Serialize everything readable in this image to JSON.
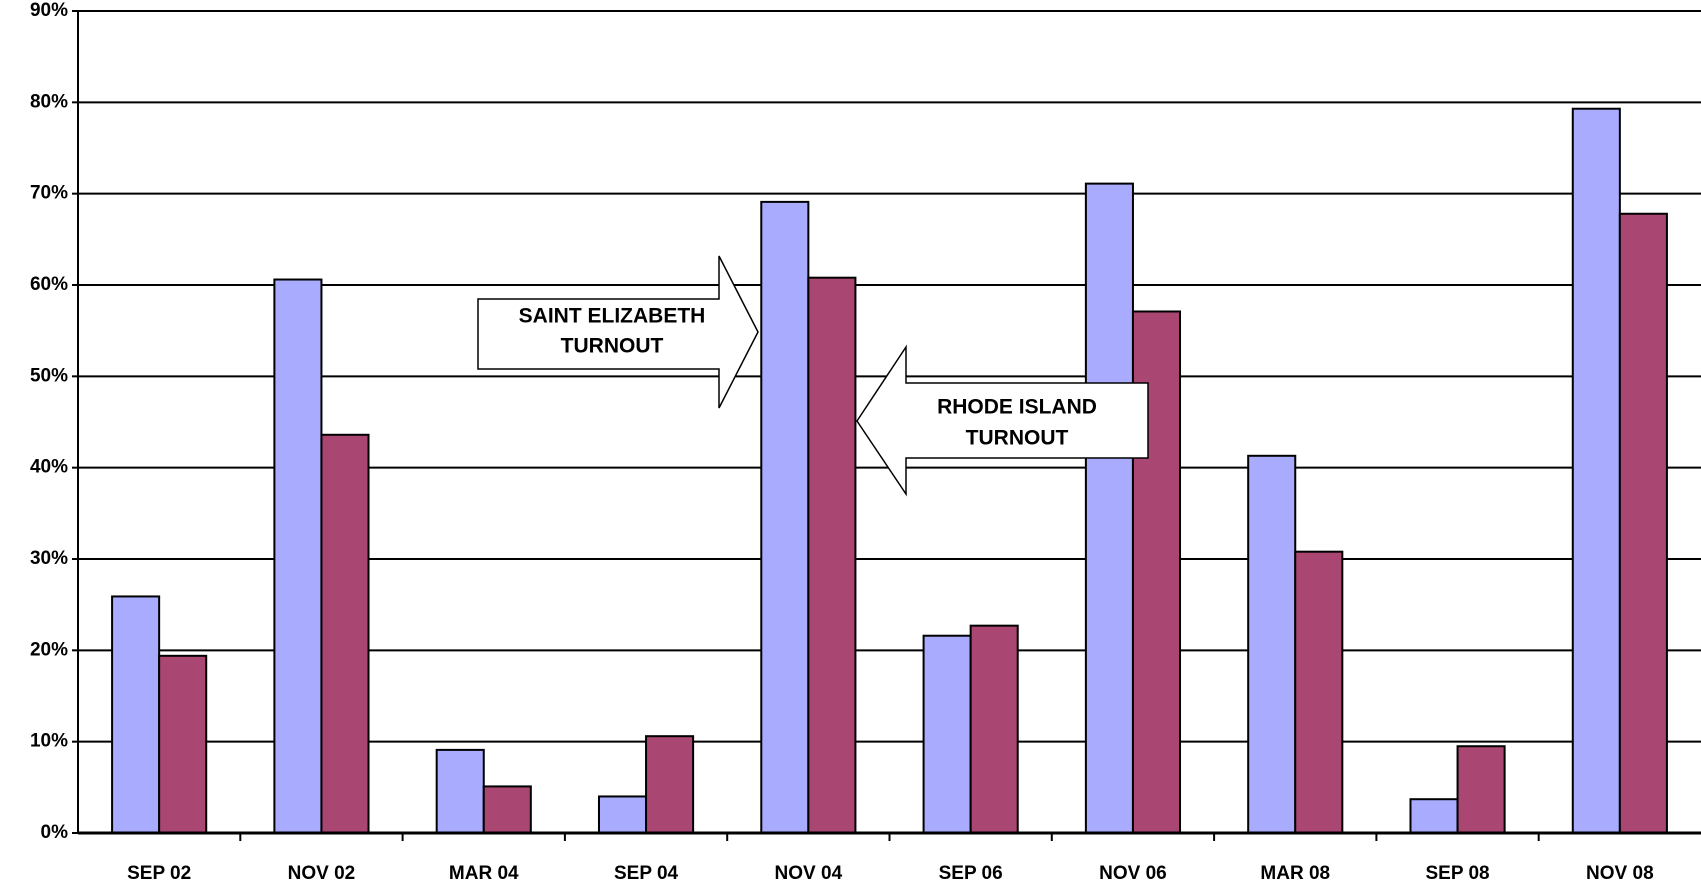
{
  "chart_data": {
    "type": "bar",
    "categories": [
      "SEP 02",
      "NOV 02",
      "MAR 04",
      "SEP 04",
      "NOV 04",
      "SEP 06",
      "NOV 06",
      "MAR 08",
      "SEP 08",
      "NOV 08"
    ],
    "series": [
      {
        "color": "#a9abff",
        "values": [
          25.9,
          60.6,
          9.1,
          4.0,
          69.1,
          21.6,
          71.1,
          41.3,
          3.7,
          79.3
        ]
      },
      {
        "color": "#aa4672",
        "values": [
          19.4,
          43.6,
          5.1,
          10.6,
          60.8,
          22.7,
          57.1,
          30.8,
          9.5,
          67.8
        ]
      }
    ],
    "annotations": [
      {
        "lines": [
          "SAINT ELIZABETH",
          "TURNOUT"
        ]
      },
      {
        "lines": [
          "RHODE ISLAND",
          "TURNOUT"
        ]
      }
    ],
    "ylim": [
      0,
      90
    ],
    "yticks": [
      {
        "value": 0,
        "label": "0%"
      },
      {
        "value": 10,
        "label": "10%"
      },
      {
        "value": 20,
        "label": "20%"
      },
      {
        "value": 30,
        "label": "30%"
      },
      {
        "value": 40,
        "label": "40%"
      },
      {
        "value": 50,
        "label": "50%"
      },
      {
        "value": 60,
        "label": "60%"
      },
      {
        "value": 70,
        "label": "70%"
      },
      {
        "value": 80,
        "label": "80%"
      },
      {
        "value": 90,
        "label": "90%"
      }
    ],
    "grid": true
  }
}
